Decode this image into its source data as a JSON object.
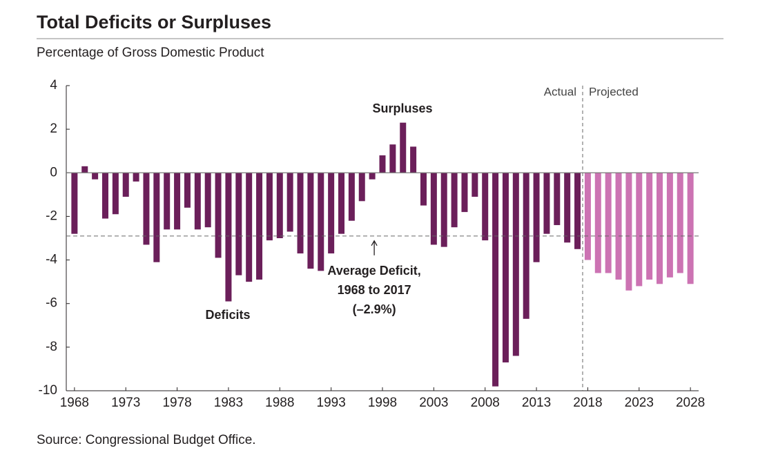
{
  "chart_data": {
    "type": "bar",
    "title": "Total Deficits or Surpluses",
    "subtitle": "Percentage of Gross Domestic Product",
    "source": "Source: Congressional Budget Office.",
    "x": [
      1968,
      1969,
      1970,
      1971,
      1972,
      1973,
      1974,
      1975,
      1976,
      1977,
      1978,
      1979,
      1980,
      1981,
      1982,
      1983,
      1984,
      1985,
      1986,
      1987,
      1988,
      1989,
      1990,
      1991,
      1992,
      1993,
      1994,
      1995,
      1996,
      1997,
      1998,
      1999,
      2000,
      2001,
      2002,
      2003,
      2004,
      2005,
      2006,
      2007,
      2008,
      2009,
      2010,
      2011,
      2012,
      2013,
      2014,
      2015,
      2016,
      2017,
      2018,
      2019,
      2020,
      2021,
      2022,
      2023,
      2024,
      2025,
      2026,
      2027,
      2028
    ],
    "series": [
      {
        "name": "Actual",
        "color": "#6b1f5a",
        "values": [
          -2.8,
          0.3,
          -0.3,
          -2.1,
          -1.9,
          -1.1,
          -0.4,
          -3.3,
          -4.1,
          -2.6,
          -2.6,
          -1.6,
          -2.6,
          -2.5,
          -3.9,
          -5.9,
          -4.7,
          -5.0,
          -4.9,
          -3.1,
          -3.0,
          -2.7,
          -3.7,
          -4.4,
          -4.5,
          -3.7,
          -2.8,
          -2.2,
          -1.3,
          -0.3,
          0.8,
          1.3,
          2.3,
          1.2,
          -1.5,
          -3.3,
          -3.4,
          -2.5,
          -1.8,
          -1.1,
          -3.1,
          -9.8,
          -8.7,
          -8.4,
          -6.7,
          -4.1,
          -2.8,
          -2.4,
          -3.2,
          -3.5,
          null,
          null,
          null,
          null,
          null,
          null,
          null,
          null,
          null,
          null,
          null
        ]
      },
      {
        "name": "Projected",
        "color": "#cc73b3",
        "values": [
          null,
          null,
          null,
          null,
          null,
          null,
          null,
          null,
          null,
          null,
          null,
          null,
          null,
          null,
          null,
          null,
          null,
          null,
          null,
          null,
          null,
          null,
          null,
          null,
          null,
          null,
          null,
          null,
          null,
          null,
          null,
          null,
          null,
          null,
          null,
          null,
          null,
          null,
          null,
          null,
          null,
          null,
          null,
          null,
          null,
          null,
          null,
          null,
          null,
          null,
          -4.0,
          -4.6,
          -4.6,
          -4.9,
          -5.4,
          -5.2,
          -4.9,
          -5.1,
          -4.8,
          -4.6,
          -5.1
        ]
      }
    ],
    "xlim": [
      1967,
      2029
    ],
    "xticks": [
      1968,
      1973,
      1978,
      1983,
      1988,
      1993,
      1998,
      2003,
      2008,
      2013,
      2018,
      2023,
      2028
    ],
    "ylim": [
      -10,
      4
    ],
    "yticks": [
      4,
      2,
      0,
      -2,
      -4,
      -6,
      -8,
      -10
    ],
    "average": {
      "value": -2.9,
      "label_lines": [
        "Average Deficit,",
        "1968 to 2017",
        "(–2.9%)"
      ]
    },
    "annotations": {
      "surpluses": "Surpluses",
      "deficits": "Deficits"
    }
  }
}
